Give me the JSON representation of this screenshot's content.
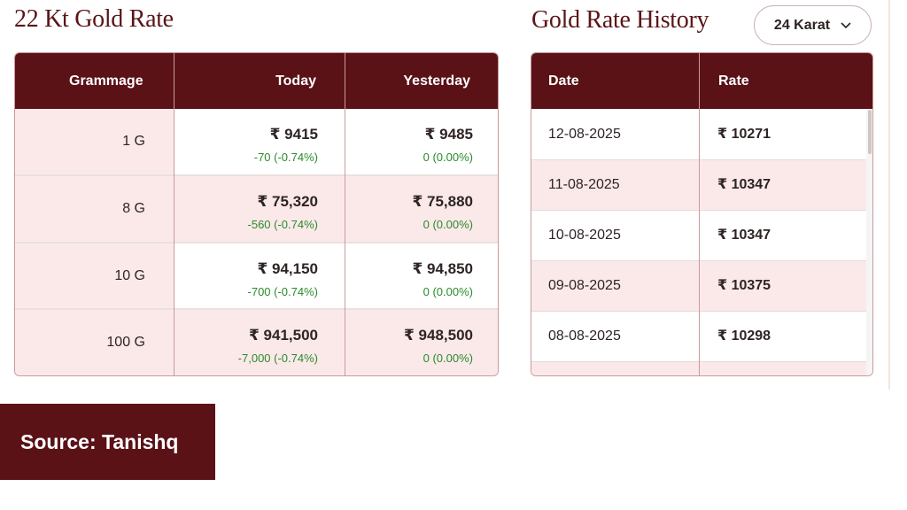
{
  "left_panel": {
    "title": "22 Kt Gold Rate",
    "headers": {
      "grammage": "Grammage",
      "today": "Today",
      "yesterday": "Yesterday"
    },
    "rows": [
      {
        "gram": "1 G",
        "today": "₹ 9415",
        "today_change": "-70 (-0.74%)",
        "yesterday": "₹ 9485",
        "yesterday_change": "0 (0.00%)"
      },
      {
        "gram": "8 G",
        "today": "₹ 75,320",
        "today_change": "-560 (-0.74%)",
        "yesterday": "₹ 75,880",
        "yesterday_change": "0 (0.00%)"
      },
      {
        "gram": "10 G",
        "today": "₹ 94,150",
        "today_change": "-700 (-0.74%)",
        "yesterday": "₹ 94,850",
        "yesterday_change": "0 (0.00%)"
      },
      {
        "gram": "100 G",
        "today": "₹ 941,500",
        "today_change": "-7,000 (-0.74%)",
        "yesterday": "₹ 948,500",
        "yesterday_change": "0 (0.00%)"
      }
    ]
  },
  "right_panel": {
    "title": "Gold Rate History",
    "karat_select": {
      "value": "24 Karat",
      "icon": "chevron-down-icon"
    },
    "headers": {
      "date": "Date",
      "rate": "Rate"
    },
    "rows": [
      {
        "date": "12-08-2025",
        "rate": "₹ 10271"
      },
      {
        "date": "11-08-2025",
        "rate": "₹ 10347"
      },
      {
        "date": "10-08-2025",
        "rate": "₹ 10347"
      },
      {
        "date": "09-08-2025",
        "rate": "₹ 10375"
      },
      {
        "date": "08-08-2025",
        "rate": "₹ 10298"
      }
    ]
  },
  "source": {
    "label": "Source: Tanishq"
  },
  "colors": {
    "brand_maroon": "#5a1217",
    "row_pink": "#fbe9ea",
    "change_green": "#2a8a2a"
  }
}
